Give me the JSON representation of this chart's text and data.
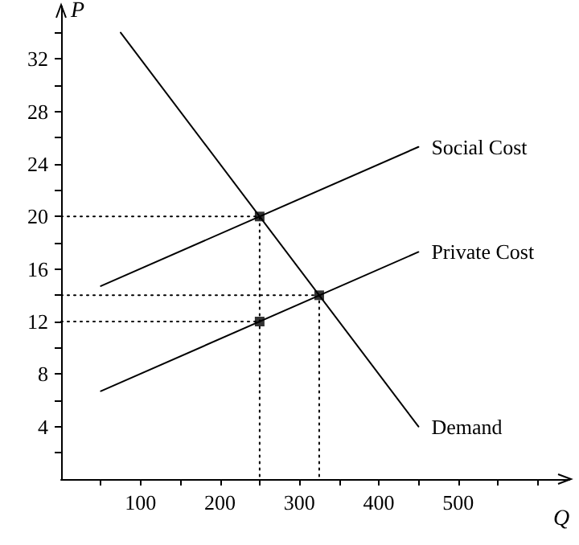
{
  "chart_data": {
    "type": "line",
    "xlabel": "Q",
    "ylabel": "P",
    "xlim": [
      0,
      640
    ],
    "ylim": [
      0,
      36
    ],
    "xticks": [
      {
        "value": 50,
        "label": null
      },
      100,
      {
        "value": 150,
        "label": null
      },
      200,
      {
        "value": 250,
        "label": null
      },
      300,
      {
        "value": 350,
        "label": null
      },
      400,
      {
        "value": 450,
        "label": null
      },
      500,
      {
        "value": 550,
        "label": null
      },
      {
        "value": 600,
        "label": null
      }
    ],
    "yticks": [
      {
        "value": 2,
        "label": null
      },
      4,
      {
        "value": 6,
        "label": null
      },
      8,
      {
        "value": 10,
        "label": null
      },
      12,
      {
        "value": 14,
        "label": null
      },
      16,
      {
        "value": 18,
        "label": null
      },
      20,
      {
        "value": 22,
        "label": null
      },
      24,
      {
        "value": 26,
        "label": null
      },
      28,
      {
        "value": 30,
        "label": null
      },
      32,
      {
        "value": 34,
        "label": null
      }
    ],
    "grid": false,
    "legend": false,
    "series": [
      {
        "name": "Social Cost",
        "color": "#000000",
        "x": [
          50,
          450
        ],
        "values": [
          14.7,
          25.3
        ],
        "line_style": "solid",
        "marker": "none"
      },
      {
        "name": "Private Cost",
        "color": "#000000",
        "x": [
          50,
          450
        ],
        "values": [
          6.7,
          17.3
        ],
        "line_style": "solid",
        "marker": "none"
      },
      {
        "name": "Demand",
        "color": "#000000",
        "x": [
          75,
          450
        ],
        "values": [
          34,
          4
        ],
        "line_style": "solid",
        "marker": "none"
      },
      {
        "color": "#000000",
        "x": [
          0,
          250,
          250
        ],
        "values": [
          20,
          20,
          0
        ],
        "line_style": "dotted",
        "marker": "none"
      },
      {
        "color": "#000000",
        "x": [
          0,
          250
        ],
        "values": [
          12,
          12
        ],
        "line_style": "dotted",
        "marker": "none"
      },
      {
        "color": "#000000",
        "x": [
          0,
          325,
          325
        ],
        "values": [
          14,
          14,
          0
        ],
        "line_style": "dotted",
        "marker": "none"
      },
      {
        "type": "scatter",
        "color": "#000000",
        "x": [
          250,
          250,
          325
        ],
        "values": [
          20,
          12,
          14
        ],
        "marker": "square"
      }
    ]
  }
}
